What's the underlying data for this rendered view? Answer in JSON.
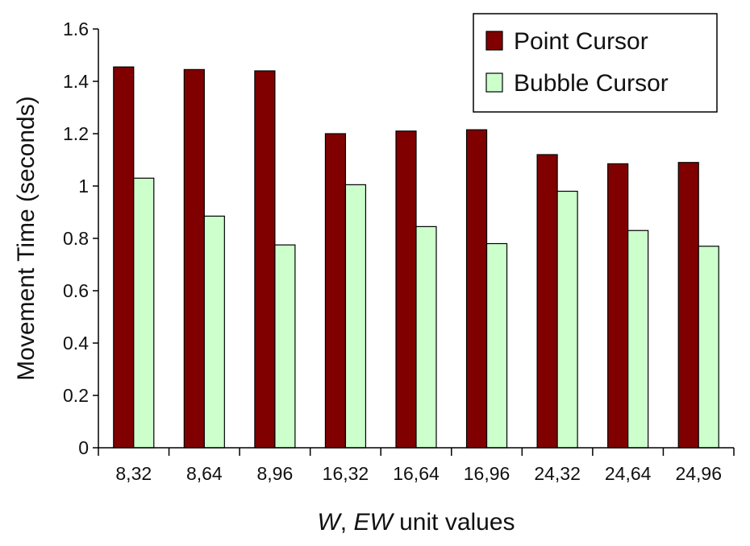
{
  "chart_data": {
    "type": "bar",
    "categories": [
      "8,32",
      "8,64",
      "8,96",
      "16,32",
      "16,64",
      "16,96",
      "24,32",
      "24,64",
      "24,96"
    ],
    "series": [
      {
        "name": "Point Cursor",
        "color": "#800000",
        "values": [
          1.455,
          1.445,
          1.44,
          1.2,
          1.21,
          1.215,
          1.12,
          1.085,
          1.09
        ]
      },
      {
        "name": "Bubble Cursor",
        "color": "#ccffcc",
        "values": [
          1.03,
          0.885,
          0.775,
          1.005,
          0.845,
          0.78,
          0.98,
          0.83,
          0.77
        ]
      }
    ],
    "xlabel": {
      "italic_1": "W",
      "sep": ", ",
      "italic_2": "EW",
      "rest": " unit values"
    },
    "ylabel": "Movement Time (seconds)",
    "ylim": [
      0,
      1.6
    ],
    "yticks": [
      "0",
      "0.2",
      "0.4",
      "0.6",
      "0.8",
      "1",
      "1.2",
      "1.4",
      "1.6"
    ],
    "grid": false,
    "legend_position": "top-right"
  }
}
